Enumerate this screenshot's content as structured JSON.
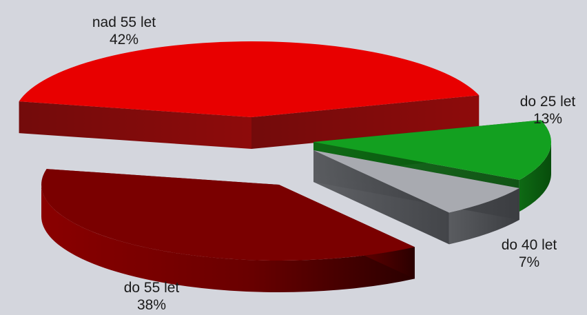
{
  "chart_data": {
    "type": "pie",
    "three_d": true,
    "exploded": true,
    "title": "",
    "legend": "none",
    "slices": [
      {
        "label": "nad 55 let",
        "value": 42,
        "value_label": "42%",
        "color": "#e80000"
      },
      {
        "label": "do 25 let",
        "value": 13,
        "value_label": "13%",
        "color": "#13a020"
      },
      {
        "label": "do 40 let",
        "value": 7,
        "value_label": "7%",
        "color": "#a8aab0"
      },
      {
        "label": "do 55 let",
        "value": 38,
        "value_label": "38%",
        "color": "#7a0000"
      }
    ]
  }
}
